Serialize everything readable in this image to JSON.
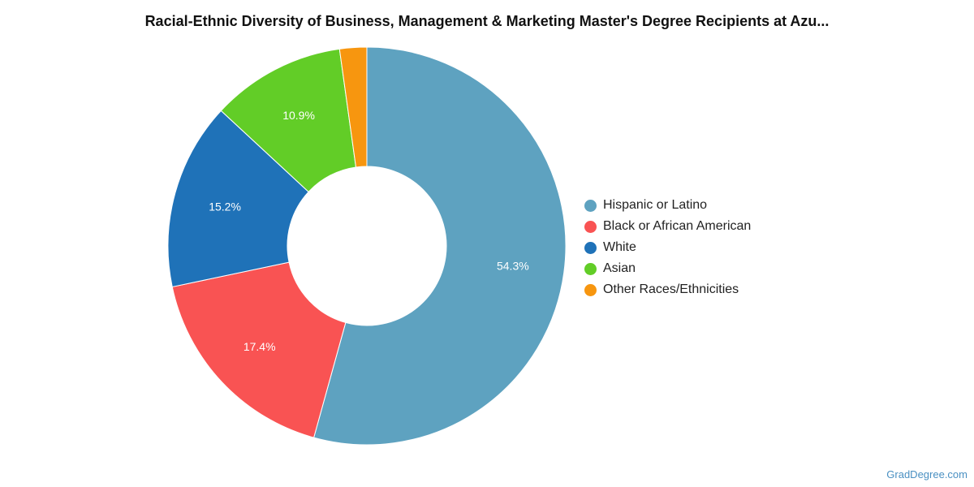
{
  "chart_data": {
    "type": "pie",
    "title": "Racial-Ethnic Diversity of Business, Management & Marketing Master's Degree Recipients at Azu...",
    "donut": true,
    "legend_position": "right",
    "series": [
      {
        "categories": [
          "Hispanic or Latino",
          "Black or African American",
          "White",
          "Asian",
          "Other Races/Ethnicities"
        ],
        "values": [
          54.3,
          17.4,
          15.2,
          10.9,
          2.2
        ],
        "labels": [
          "54.3%",
          "17.4%",
          "15.2%",
          "10.9%",
          ""
        ],
        "colors": [
          "#5ea2c0",
          "#f95353",
          "#1f72b8",
          "#62cd27",
          "#f7960f"
        ]
      }
    ]
  },
  "credit": "GradDegree.com"
}
